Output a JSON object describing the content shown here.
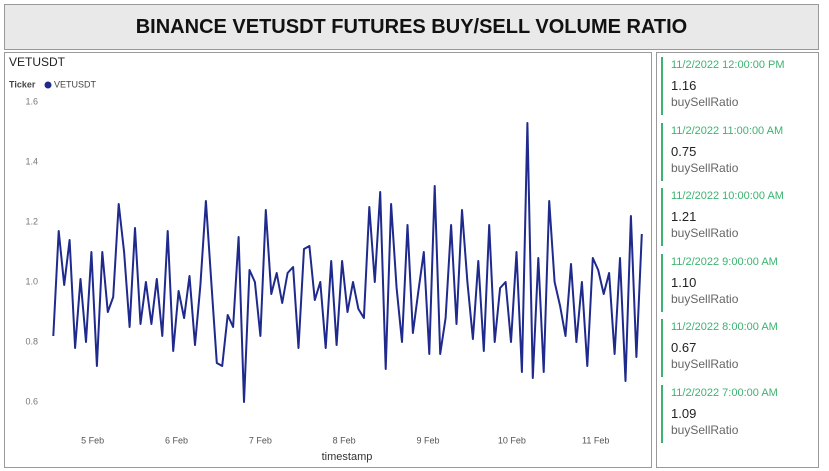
{
  "header": {
    "title": "BINANCE VETUSDT FUTURES BUY/SELL VOLUME RATIO"
  },
  "chart_data": {
    "type": "line",
    "title": "VETUSDT",
    "legend_title": "Ticker",
    "x_label": "timestamp",
    "series": [
      {
        "name": "VETUSDT",
        "color": "#1f2a8c",
        "x": [
          4.53,
          4.595,
          4.66,
          4.725,
          4.79,
          4.855,
          4.92,
          4.985,
          5.05,
          5.115,
          5.18,
          5.245,
          5.31,
          5.375,
          5.44,
          5.505,
          5.57,
          5.635,
          5.7,
          5.765,
          5.83,
          5.895,
          5.96,
          6.025,
          6.09,
          6.155,
          6.22,
          6.285,
          6.35,
          6.415,
          6.48,
          6.545,
          6.61,
          6.675,
          6.74,
          6.805,
          6.87,
          6.935,
          7.0,
          7.065,
          7.13,
          7.195,
          7.26,
          7.325,
          7.39,
          7.455,
          7.52,
          7.585,
          7.65,
          7.715,
          7.78,
          7.845,
          7.91,
          7.975,
          8.04,
          8.105,
          8.17,
          8.235,
          8.3,
          8.365,
          8.43,
          8.495,
          8.56,
          8.625,
          8.69,
          8.755,
          8.82,
          8.885,
          8.95,
          9.015,
          9.08,
          9.145,
          9.21,
          9.275,
          9.34,
          9.405,
          9.47,
          9.535,
          9.6,
          9.665,
          9.73,
          9.795,
          9.86,
          9.925,
          9.99,
          10.055,
          10.12,
          10.185,
          10.25,
          10.315,
          10.38,
          10.445,
          10.51,
          10.575,
          10.64,
          10.705,
          10.77,
          10.835,
          10.9,
          10.965,
          11.03,
          11.095,
          11.16,
          11.225,
          11.29,
          11.355,
          11.42,
          11.485,
          11.55
        ],
        "values": [
          0.82,
          1.17,
          0.99,
          1.14,
          0.78,
          1.01,
          0.8,
          1.1,
          0.72,
          1.1,
          0.9,
          0.95,
          1.26,
          1.1,
          0.85,
          1.18,
          0.86,
          1.0,
          0.86,
          1.01,
          0.82,
          1.17,
          0.77,
          0.97,
          0.88,
          1.02,
          0.79,
          0.99,
          1.27,
          1.0,
          0.73,
          0.72,
          0.89,
          0.85,
          1.15,
          0.6,
          1.04,
          1.0,
          0.82,
          1.24,
          0.96,
          1.03,
          0.93,
          1.03,
          1.05,
          0.78,
          1.11,
          1.12,
          0.94,
          1.0,
          0.78,
          1.07,
          0.79,
          1.07,
          0.9,
          1.0,
          0.91,
          0.88,
          1.25,
          1.0,
          1.3,
          0.71,
          1.26,
          0.98,
          0.8,
          1.19,
          0.83,
          0.97,
          1.1,
          0.76,
          1.32,
          0.76,
          0.88,
          1.19,
          0.86,
          1.24,
          1.0,
          0.81,
          1.07,
          0.77,
          1.19,
          0.8,
          0.98,
          1.0,
          0.8,
          1.1,
          0.7,
          1.53,
          0.68,
          1.08,
          0.7,
          1.27,
          1.0,
          0.92,
          0.82,
          1.06,
          0.8,
          1.0,
          0.72,
          1.08,
          1.04,
          0.96,
          1.03,
          0.76,
          1.08,
          0.67,
          1.22,
          0.75,
          1.16
        ]
      }
    ],
    "xlim": [
      4.3,
      11.6
    ],
    "xticks": [
      {
        "value": 5,
        "label": "5 Feb"
      },
      {
        "value": 6,
        "label": "6 Feb"
      },
      {
        "value": 7,
        "label": "7 Feb"
      },
      {
        "value": 8,
        "label": "8 Feb"
      },
      {
        "value": 9,
        "label": "9 Feb"
      },
      {
        "value": 10,
        "label": "10 Feb"
      },
      {
        "value": 11,
        "label": "11 Feb"
      }
    ],
    "ylim": [
      0.52,
      1.62
    ],
    "yticks": [
      0.6,
      0.8,
      {
        "value": 1.0,
        "label": "1.0"
      },
      1.2,
      1.4,
      1.6
    ],
    "grid": false
  },
  "cards": [
    {
      "time": "11/2/2022 12:00:00 PM",
      "value": "1.16",
      "label": "buySellRatio"
    },
    {
      "time": "11/2/2022 11:00:00 AM",
      "value": "0.75",
      "label": "buySellRatio"
    },
    {
      "time": "11/2/2022 10:00:00 AM",
      "value": "1.21",
      "label": "buySellRatio"
    },
    {
      "time": "11/2/2022 9:00:00 AM",
      "value": "1.10",
      "label": "buySellRatio"
    },
    {
      "time": "11/2/2022 8:00:00 AM",
      "value": "0.67",
      "label": "buySellRatio"
    },
    {
      "time": "11/2/2022 7:00:00 AM",
      "value": "1.09",
      "label": "buySellRatio"
    }
  ]
}
